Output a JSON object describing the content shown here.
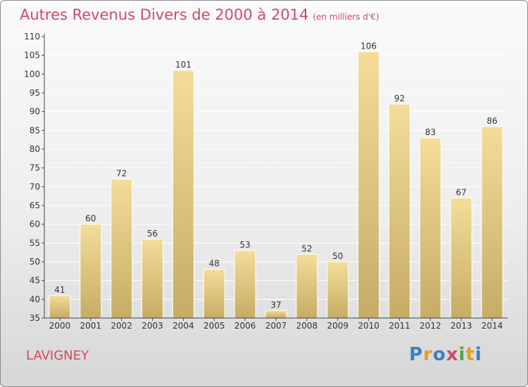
{
  "header": {
    "title": "Autres Revenus Divers de 2000 à 2014",
    "subtitle": "(en milliers d'€)"
  },
  "footer": {
    "commune": "LAVIGNEY",
    "logo_text": "Proxiti",
    "logo_colors": [
      "#3a7fc4",
      "#e5a020",
      "#3a7fc4",
      "#d04a63",
      "#4aa84a",
      "#e5a020",
      "#3a7fc4"
    ]
  },
  "colors": {
    "title": "#d04a63",
    "bar_top": "#f3dd99",
    "bar_bottom": "#c6ac66",
    "grid": "#ffffff",
    "axis": "#444444"
  },
  "chart_data": {
    "type": "bar",
    "categories": [
      "2000",
      "2001",
      "2002",
      "2003",
      "2004",
      "2005",
      "2006",
      "2007",
      "2008",
      "2009",
      "2010",
      "2011",
      "2012",
      "2013",
      "2014"
    ],
    "values": [
      41,
      60,
      72,
      56,
      101,
      48,
      53,
      37,
      52,
      50,
      106,
      92,
      83,
      67,
      86
    ],
    "ylim": [
      35,
      110
    ],
    "yticks": [
      35,
      40,
      45,
      50,
      55,
      60,
      65,
      70,
      75,
      80,
      85,
      90,
      95,
      100,
      105,
      110
    ],
    "grid": true,
    "legend": "none"
  }
}
